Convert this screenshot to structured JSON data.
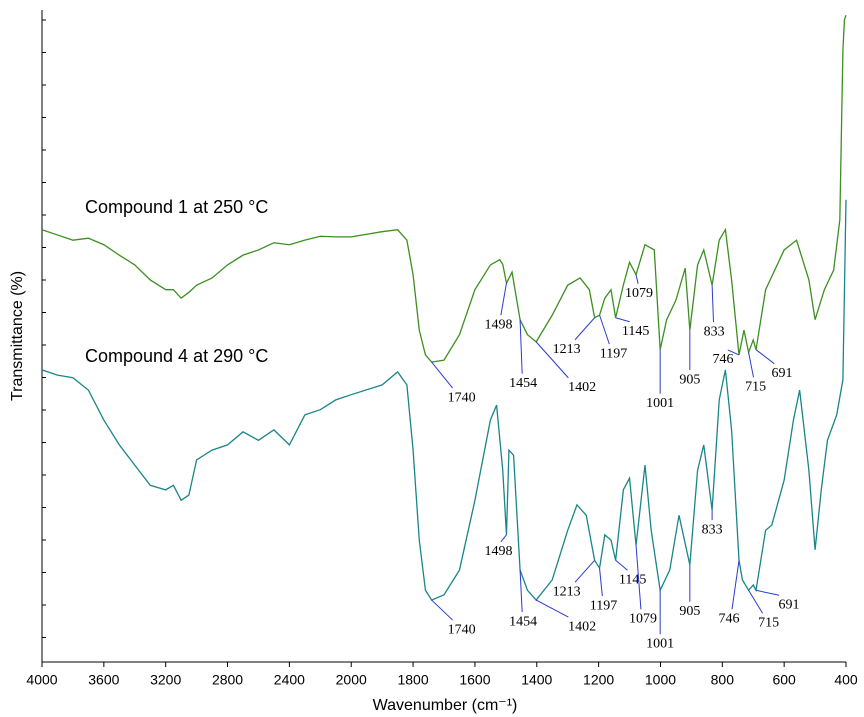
{
  "chart_data": {
    "type": "line",
    "x_label": "Wavenumber (cm⁻¹)",
    "y_label": "Transmittance (%)",
    "xlim": [
      4000,
      400
    ],
    "xticks": [
      4000,
      3600,
      3200,
      2800,
      2400,
      2000,
      1800,
      1600,
      1400,
      1200,
      1000,
      800,
      600,
      400
    ],
    "ylim": [
      0,
      100
    ],
    "series": [
      {
        "name": "Compound 1 at 250 °C",
        "color": "#3d8f22",
        "x": [
          4000,
          3900,
          3800,
          3700,
          3600,
          3500,
          3400,
          3300,
          3200,
          3150,
          3100,
          3050,
          3000,
          2900,
          2800,
          2700,
          2600,
          2500,
          2400,
          2300,
          2200,
          2100,
          2000,
          1900,
          1850,
          1820,
          1800,
          1780,
          1760,
          1740,
          1700,
          1650,
          1600,
          1550,
          1520,
          1510,
          1498,
          1480,
          1454,
          1430,
          1402,
          1350,
          1300,
          1260,
          1230,
          1213,
          1197,
          1180,
          1160,
          1145,
          1120,
          1100,
          1079,
          1050,
          1020,
          1001,
          980,
          950,
          920,
          905,
          880,
          860,
          833,
          810,
          790,
          770,
          746,
          730,
          715,
          700,
          691,
          660,
          600,
          560,
          520,
          500,
          470,
          440,
          420,
          410,
          405,
          400
        ],
        "values": [
          66.3,
          65.5,
          64.7,
          65.0,
          64.0,
          62.4,
          60.9,
          58.6,
          57.1,
          57.1,
          55.8,
          56.7,
          57.8,
          58.9,
          60.9,
          62.4,
          63.2,
          64.3,
          64.0,
          64.7,
          65.3,
          65.2,
          65.2,
          66.0,
          66.3,
          64.7,
          59.4,
          50.9,
          47.1,
          46.0,
          46.3,
          50.2,
          57.1,
          60.9,
          61.7,
          61.0,
          58.1,
          59.8,
          52.5,
          50.2,
          49.1,
          53.2,
          57.8,
          58.9,
          57.1,
          52.8,
          53.2,
          55.8,
          57.1,
          52.8,
          57.8,
          61.3,
          59.4,
          64.0,
          63.2,
          47.9,
          52.5,
          55.5,
          60.4,
          50.9,
          60.9,
          63.2,
          57.8,
          64.7,
          66.3,
          58.6,
          47.1,
          50.9,
          47.5,
          49.4,
          47.9,
          57.1,
          63.2,
          64.7,
          58.6,
          52.5,
          57.1,
          60.1,
          67.8,
          93.9,
          98.5,
          99.2
        ],
        "peaks": [
          1740,
          1498,
          1454,
          1402,
          1213,
          1197,
          1145,
          1079,
          1001,
          905,
          833,
          746,
          715,
          691
        ]
      },
      {
        "name": "Compound 4 at 290 °C",
        "color": "#1a8589",
        "x": [
          4000,
          3900,
          3800,
          3700,
          3600,
          3500,
          3400,
          3300,
          3200,
          3150,
          3100,
          3050,
          3000,
          2900,
          2800,
          2700,
          2600,
          2500,
          2400,
          2350,
          2300,
          2200,
          2100,
          2000,
          1900,
          1850,
          1820,
          1800,
          1780,
          1760,
          1740,
          1700,
          1650,
          1600,
          1550,
          1530,
          1510,
          1498,
          1490,
          1475,
          1454,
          1430,
          1402,
          1350,
          1300,
          1270,
          1240,
          1213,
          1197,
          1180,
          1160,
          1145,
          1120,
          1100,
          1079,
          1050,
          1030,
          1001,
          970,
          940,
          905,
          880,
          860,
          833,
          810,
          790,
          770,
          746,
          735,
          715,
          700,
          691,
          660,
          640,
          600,
          570,
          550,
          520,
          500,
          480,
          460,
          430,
          410,
          400
        ],
        "values": [
          44.8,
          44.0,
          43.6,
          41.7,
          37.1,
          33.3,
          30.2,
          27.1,
          26.4,
          27.1,
          24.8,
          25.6,
          31.0,
          32.5,
          33.3,
          35.3,
          34.0,
          35.6,
          33.3,
          35.6,
          37.9,
          38.7,
          40.2,
          41.0,
          42.5,
          44.5,
          42.5,
          32.5,
          18.7,
          11.0,
          9.5,
          10.3,
          14.1,
          24.8,
          37.1,
          39.4,
          29.4,
          19.5,
          32.5,
          31.7,
          14.1,
          11.0,
          9.5,
          12.6,
          20.2,
          24.1,
          22.5,
          15.6,
          14.4,
          19.5,
          18.7,
          15.6,
          26.4,
          28.2,
          17.9,
          30.2,
          20.2,
          11.0,
          14.1,
          22.5,
          14.9,
          29.4,
          33.3,
          23.3,
          40.2,
          44.8,
          35.6,
          15.6,
          12.6,
          11.0,
          11.8,
          11.0,
          20.2,
          21.0,
          27.9,
          37.1,
          41.7,
          29.4,
          17.2,
          26.4,
          34.0,
          37.9,
          43.3,
          70.9
        ],
        "peaks": [
          1740,
          1498,
          1454,
          1402,
          1213,
          1197,
          1145,
          1079,
          1001,
          905,
          833,
          746,
          715,
          691
        ]
      }
    ]
  }
}
